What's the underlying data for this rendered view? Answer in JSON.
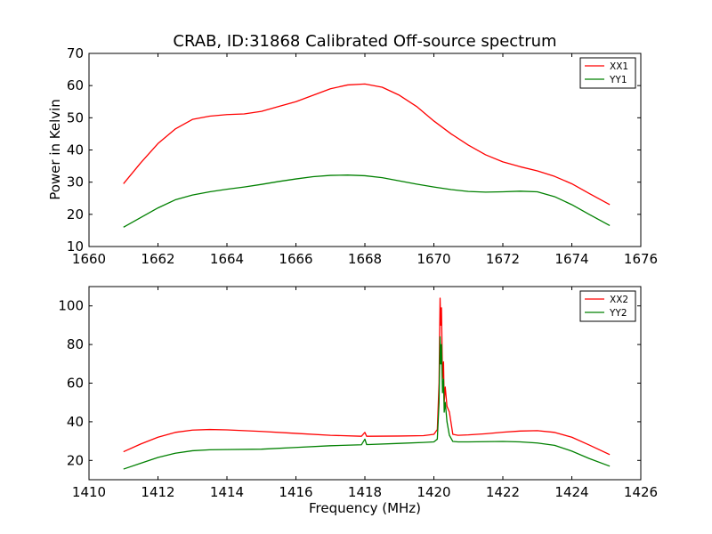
{
  "chart_data": [
    {
      "type": "line",
      "title": "CRAB, ID:31868 Calibrated Off-source spectrum",
      "xlabel": "",
      "ylabel": "Power in Kelvin",
      "xlim": [
        1660,
        1676
      ],
      "ylim": [
        10,
        70
      ],
      "xticks": [
        "1660",
        "1662",
        "1664",
        "1666",
        "1668",
        "1670",
        "1672",
        "1674",
        "1676"
      ],
      "yticks": [
        "10",
        "20",
        "30",
        "40",
        "50",
        "60",
        "70"
      ],
      "grid": false,
      "legend_position": "top-right",
      "series": [
        {
          "name": "XX1",
          "color": "#ff0000",
          "x": [
            1661.0,
            1661.5,
            1662.0,
            1662.5,
            1663.0,
            1663.5,
            1664.0,
            1664.5,
            1665.0,
            1665.5,
            1666.0,
            1666.5,
            1667.0,
            1667.5,
            1668.0,
            1668.5,
            1669.0,
            1669.5,
            1670.0,
            1670.5,
            1671.0,
            1671.5,
            1672.0,
            1672.5,
            1673.0,
            1673.5,
            1674.0,
            1674.5,
            1675.1
          ],
          "y": [
            29.5,
            36.0,
            42.0,
            46.5,
            49.5,
            50.5,
            51.0,
            51.2,
            52.0,
            53.5,
            55.0,
            57.0,
            59.0,
            60.2,
            60.5,
            59.5,
            57.0,
            53.5,
            49.0,
            45.0,
            41.5,
            38.5,
            36.3,
            34.8,
            33.5,
            31.8,
            29.5,
            26.5,
            23.0
          ]
        },
        {
          "name": "YY1",
          "color": "#008000",
          "x": [
            1661.0,
            1661.5,
            1662.0,
            1662.5,
            1663.0,
            1663.5,
            1664.0,
            1664.5,
            1665.0,
            1665.5,
            1666.0,
            1666.5,
            1667.0,
            1667.5,
            1668.0,
            1668.5,
            1669.0,
            1669.5,
            1670.0,
            1670.5,
            1671.0,
            1671.5,
            1672.0,
            1672.5,
            1673.0,
            1673.5,
            1674.0,
            1674.5,
            1675.1
          ],
          "y": [
            16.0,
            19.0,
            22.0,
            24.5,
            26.0,
            27.0,
            27.8,
            28.5,
            29.3,
            30.2,
            31.0,
            31.7,
            32.1,
            32.2,
            32.0,
            31.4,
            30.4,
            29.4,
            28.5,
            27.7,
            27.1,
            26.9,
            27.0,
            27.2,
            27.0,
            25.5,
            23.0,
            20.0,
            16.5
          ]
        }
      ]
    },
    {
      "type": "line",
      "title": "",
      "xlabel": "Frequency (MHz)",
      "ylabel": "",
      "xlim": [
        1410,
        1426
      ],
      "ylim": [
        10,
        110
      ],
      "xticks": [
        "1410",
        "1412",
        "1414",
        "1416",
        "1418",
        "1420",
        "1422",
        "1424",
        "1426"
      ],
      "yticks": [
        "20",
        "40",
        "60",
        "80",
        "100"
      ],
      "grid": false,
      "legend_position": "top-right",
      "series": [
        {
          "name": "XX2",
          "color": "#ff0000",
          "x": [
            1411.0,
            1411.5,
            1412.0,
            1412.5,
            1413.0,
            1413.5,
            1414.0,
            1415.0,
            1416.0,
            1417.0,
            1417.9,
            1418.0,
            1418.05,
            1418.1,
            1419.0,
            1419.7,
            1420.0,
            1420.1,
            1420.15,
            1420.18,
            1420.2,
            1420.22,
            1420.25,
            1420.28,
            1420.3,
            1420.33,
            1420.38,
            1420.45,
            1420.55,
            1420.7,
            1421.0,
            1421.5,
            1422.0,
            1422.5,
            1423.0,
            1423.5,
            1424.0,
            1424.5,
            1425.1
          ],
          "y": [
            24.5,
            28.5,
            32.0,
            34.5,
            35.7,
            36.0,
            35.8,
            35.0,
            34.0,
            33.0,
            32.5,
            34.5,
            32.5,
            32.5,
            32.6,
            32.8,
            33.5,
            36.0,
            60.0,
            104.0,
            90.0,
            99.0,
            62.0,
            71.0,
            50.0,
            58.0,
            48.0,
            45.0,
            33.5,
            33.0,
            33.2,
            33.8,
            34.6,
            35.2,
            35.4,
            34.5,
            32.0,
            28.0,
            23.0
          ]
        },
        {
          "name": "YY2",
          "color": "#008000",
          "x": [
            1411.0,
            1411.5,
            1412.0,
            1412.5,
            1413.0,
            1413.5,
            1414.0,
            1415.0,
            1416.0,
            1417.0,
            1417.9,
            1418.0,
            1418.05,
            1418.1,
            1419.0,
            1419.7,
            1420.0,
            1420.1,
            1420.15,
            1420.18,
            1420.2,
            1420.22,
            1420.25,
            1420.28,
            1420.3,
            1420.33,
            1420.38,
            1420.45,
            1420.55,
            1420.7,
            1421.0,
            1421.5,
            1422.0,
            1422.5,
            1423.0,
            1423.5,
            1424.0,
            1424.5,
            1425.1
          ],
          "y": [
            15.5,
            18.5,
            21.5,
            23.7,
            25.0,
            25.5,
            25.6,
            25.8,
            26.7,
            27.6,
            28.1,
            31.0,
            28.2,
            28.2,
            28.8,
            29.3,
            29.6,
            31.0,
            50.0,
            84.0,
            70.0,
            80.0,
            55.0,
            62.0,
            45.0,
            50.0,
            40.0,
            33.0,
            29.8,
            29.6,
            29.6,
            29.7,
            29.8,
            29.6,
            29.0,
            27.8,
            24.8,
            21.0,
            17.0
          ]
        }
      ]
    }
  ]
}
